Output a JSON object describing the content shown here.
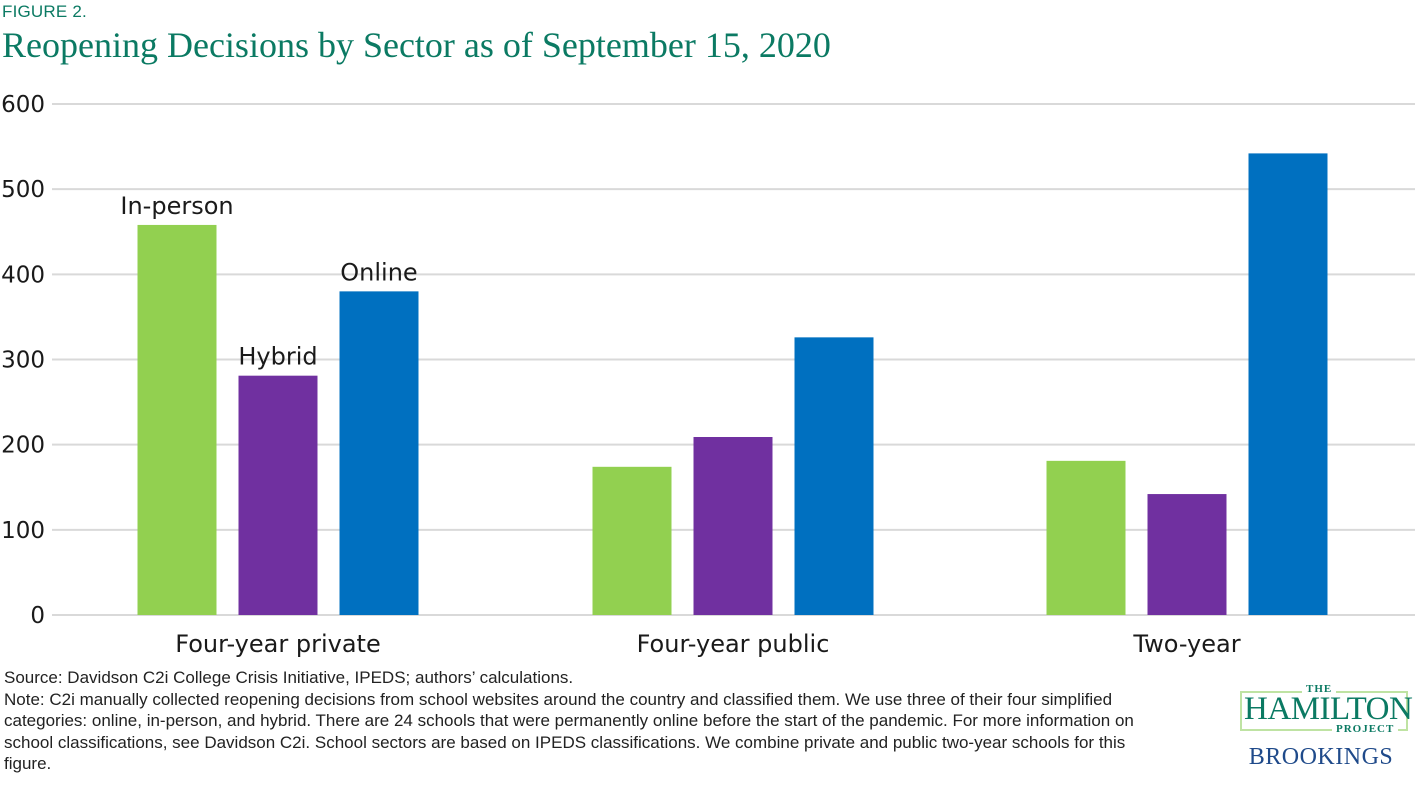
{
  "figure_label": "FIGURE 2.",
  "title": "Reopening Decisions by Sector as of September 15, 2020",
  "colors": {
    "title": "#0b7a63",
    "in_person": "#92d050",
    "hybrid": "#7030a0",
    "online": "#0070c0",
    "grid": "#d9d9d9",
    "text": "#1a1a1a"
  },
  "chart_data": {
    "type": "bar",
    "title": "Reopening Decisions by Sector as of September 15, 2020",
    "xlabel": "",
    "ylabel": "",
    "categories": [
      "Four-year private",
      "Four-year public",
      "Two-year"
    ],
    "series": [
      {
        "name": "In-person",
        "color": "#92d050",
        "values": [
          458,
          174,
          181
        ]
      },
      {
        "name": "Hybrid",
        "color": "#7030a0",
        "values": [
          281,
          209,
          142
        ]
      },
      {
        "name": "Online",
        "color": "#0070c0",
        "values": [
          380,
          326,
          542
        ]
      }
    ],
    "ylim": [
      0,
      600
    ],
    "yticks": [
      0,
      100,
      200,
      300,
      400,
      500,
      600
    ],
    "grid": true,
    "legend": "inline labels above bars of first category"
  },
  "source": "Source: Davidson C2i College Crisis Initiative, IPEDS; authors’ calculations.",
  "note": "Note: C2i manually collected reopening decisions from school websites around the country and classified them. We use three of their four simplified categories: online, in-person, and hybrid. There are 24 schools that were permanently online before the start of the pandemic. For more information on school classifications, see Davidson C2i. School sectors are based on IPEDS classifications. We combine private and public two-year schools for this figure.",
  "logo": {
    "the": "THE",
    "hamilton": "HAMILTON",
    "project": "PROJECT",
    "brookings": "BROOKINGS"
  }
}
